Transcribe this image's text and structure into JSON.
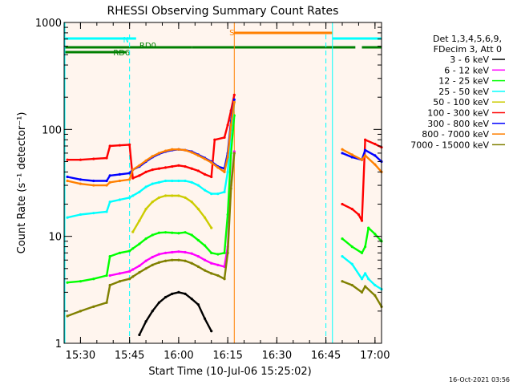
{
  "chart_data": {
    "type": "line",
    "title": "RHESSI Observing Summary Count Rates",
    "xlabel": "Start Time (10-Jul-06 15:25:02)",
    "ylabel": "Count Rate (s⁻¹ detector⁻¹)",
    "y_scale": "log",
    "ylim": [
      1,
      1000
    ],
    "xlim_minutes": [
      0,
      97
    ],
    "x_ticks": [
      {
        "label": "15:30",
        "t": 5
      },
      {
        "label": "15:45",
        "t": 20
      },
      {
        "label": "16:00",
        "t": 35
      },
      {
        "label": "16:15",
        "t": 50
      },
      {
        "label": "16:30",
        "t": 65
      },
      {
        "label": "16:45",
        "t": 80
      },
      {
        "label": "17:00",
        "t": 95
      }
    ],
    "y_ticks": [
      {
        "label": "1",
        "v": 1
      },
      {
        "label": "10",
        "v": 10
      },
      {
        "label": "100",
        "v": 100
      },
      {
        "label": "1000",
        "v": 1000
      }
    ],
    "legend_header": [
      "Det 1,3,4,5,6,9,",
      "FDecim 3, Att 0"
    ],
    "legend_position": "right",
    "footer": "16-Oct-2021 03:56",
    "flag_labels": [
      {
        "label": "N",
        "color": "#00ffff"
      },
      {
        "label": "S",
        "color": "#ff8000"
      },
      {
        "label": "RD0",
        "color": "#007f00"
      },
      {
        "label": "RD6",
        "color": "#007f00"
      }
    ],
    "flags": {
      "N": [
        [
          0,
          22
        ],
        [
          82,
          97
        ]
      ],
      "S": [
        [
          52,
          82
        ]
      ],
      "RD0": [
        [
          0,
          39
        ],
        [
          39,
          82
        ],
        [
          82,
          89
        ],
        [
          91,
          97
        ]
      ],
      "RD6": [
        [
          0,
          19
        ]
      ]
    },
    "night_markers": [
      [
        0,
        20
      ],
      [
        80,
        97
      ]
    ],
    "series": [
      {
        "name": "3 - 6 keV",
        "color": "#000000",
        "points": [
          [
            23,
            1.2
          ],
          [
            25,
            1.6
          ],
          [
            27,
            2.0
          ],
          [
            29,
            2.4
          ],
          [
            31,
            2.7
          ],
          [
            33,
            2.9
          ],
          [
            35,
            3.0
          ],
          [
            37,
            2.9
          ],
          [
            39,
            2.6
          ],
          [
            41,
            2.3
          ],
          [
            43,
            1.7
          ],
          [
            45,
            1.3
          ]
        ]
      },
      {
        "name": "6 - 12 keV",
        "color": "#ff00ff",
        "points": [
          [
            14,
            4.3
          ],
          [
            17,
            4.5
          ],
          [
            20,
            4.7
          ],
          [
            21,
            4.9
          ],
          [
            23,
            5.3
          ],
          [
            25,
            5.9
          ],
          [
            27,
            6.4
          ],
          [
            29,
            6.8
          ],
          [
            31,
            7.0
          ],
          [
            33,
            7.1
          ],
          [
            35,
            7.2
          ],
          [
            37,
            7.1
          ],
          [
            39,
            6.9
          ],
          [
            41,
            6.5
          ],
          [
            43,
            6.0
          ],
          [
            45,
            5.6
          ],
          [
            47,
            5.4
          ],
          [
            49,
            5.2
          ],
          [
            50,
            8.0
          ],
          [
            51,
            30
          ],
          [
            52,
            62
          ]
        ]
      },
      {
        "name": "12 - 25 keV",
        "color": "#00ff00",
        "points": [
          [
            1,
            3.7
          ],
          [
            5,
            3.8
          ],
          [
            9,
            4.0
          ],
          [
            13,
            4.3
          ],
          [
            14,
            6.5
          ],
          [
            17,
            7.0
          ],
          [
            20,
            7.3
          ],
          [
            21,
            7.7
          ],
          [
            23,
            8.5
          ],
          [
            25,
            9.5
          ],
          [
            27,
            10.3
          ],
          [
            29,
            10.8
          ],
          [
            31,
            10.9
          ],
          [
            33,
            10.8
          ],
          [
            35,
            10.7
          ],
          [
            37,
            10.9
          ],
          [
            39,
            10.3
          ],
          [
            41,
            9.2
          ],
          [
            43,
            8.2
          ],
          [
            45,
            7.0
          ],
          [
            47,
            6.8
          ],
          [
            49,
            7.0
          ],
          [
            50,
            16
          ],
          [
            51,
            60
          ],
          [
            52,
            135
          ],
          [
            85,
            9.5
          ],
          [
            88,
            8.0
          ],
          [
            91,
            7.0
          ],
          [
            92,
            8.0
          ],
          [
            93,
            12.0
          ],
          [
            95,
            10.5
          ],
          [
            97,
            9.0
          ]
        ]
      },
      {
        "name": "25 - 50 keV",
        "color": "#00ffff",
        "points": [
          [
            1,
            15
          ],
          [
            5,
            16
          ],
          [
            9,
            16.5
          ],
          [
            13,
            17
          ],
          [
            14,
            21
          ],
          [
            17,
            22
          ],
          [
            20,
            23
          ],
          [
            21,
            24
          ],
          [
            23,
            26
          ],
          [
            25,
            29
          ],
          [
            27,
            31
          ],
          [
            29,
            32
          ],
          [
            31,
            33
          ],
          [
            33,
            33
          ],
          [
            35,
            33
          ],
          [
            37,
            33
          ],
          [
            39,
            32
          ],
          [
            41,
            30
          ],
          [
            43,
            27
          ],
          [
            45,
            25
          ],
          [
            47,
            25
          ],
          [
            49,
            26
          ],
          [
            50,
            40
          ],
          [
            51,
            95
          ],
          [
            52,
            180
          ],
          [
            85,
            6.5
          ],
          [
            88,
            5.5
          ],
          [
            91,
            4.0
          ],
          [
            92,
            4.5
          ],
          [
            93,
            4.0
          ],
          [
            95,
            3.5
          ],
          [
            97,
            3.2
          ]
        ]
      },
      {
        "name": "50 - 100 keV",
        "color": "#cccc00",
        "points": [
          [
            21,
            11
          ],
          [
            23,
            14
          ],
          [
            25,
            18
          ],
          [
            27,
            21
          ],
          [
            29,
            23
          ],
          [
            31,
            24
          ],
          [
            33,
            24
          ],
          [
            35,
            24
          ],
          [
            37,
            23
          ],
          [
            39,
            21
          ],
          [
            41,
            18
          ],
          [
            43,
            15
          ],
          [
            45,
            12
          ]
        ]
      },
      {
        "name": "100 - 300 keV",
        "color": "#ff0000",
        "points": [
          [
            1,
            52
          ],
          [
            5,
            52
          ],
          [
            9,
            53
          ],
          [
            13,
            54
          ],
          [
            14,
            70
          ],
          [
            17,
            71
          ],
          [
            20,
            72
          ],
          [
            21,
            35
          ],
          [
            23,
            37
          ],
          [
            25,
            40
          ],
          [
            27,
            42
          ],
          [
            29,
            43
          ],
          [
            31,
            44
          ],
          [
            33,
            45
          ],
          [
            35,
            46
          ],
          [
            37,
            45
          ],
          [
            39,
            43
          ],
          [
            41,
            41
          ],
          [
            43,
            38
          ],
          [
            45,
            36
          ],
          [
            46,
            80
          ],
          [
            49,
            84
          ],
          [
            50,
            110
          ],
          [
            51,
            150
          ],
          [
            52,
            210
          ],
          [
            85,
            20
          ],
          [
            88,
            18
          ],
          [
            90,
            16
          ],
          [
            91,
            14
          ],
          [
            92,
            80
          ],
          [
            95,
            73
          ],
          [
            97,
            68
          ]
        ]
      },
      {
        "name": "300 - 800 keV",
        "color": "#0000ff",
        "points": [
          [
            1,
            36
          ],
          [
            5,
            34
          ],
          [
            9,
            33
          ],
          [
            13,
            33
          ],
          [
            14,
            37
          ],
          [
            17,
            38
          ],
          [
            20,
            39
          ],
          [
            21,
            42
          ],
          [
            23,
            45
          ],
          [
            25,
            50
          ],
          [
            27,
            55
          ],
          [
            29,
            59
          ],
          [
            31,
            62
          ],
          [
            33,
            64
          ],
          [
            35,
            65
          ],
          [
            37,
            64
          ],
          [
            39,
            62
          ],
          [
            41,
            58
          ],
          [
            43,
            54
          ],
          [
            45,
            50
          ],
          [
            47,
            45
          ],
          [
            49,
            43
          ],
          [
            50,
            60
          ],
          [
            51,
            120
          ],
          [
            52,
            190
          ],
          [
            85,
            60
          ],
          [
            88,
            55
          ],
          [
            91,
            52
          ],
          [
            92,
            64
          ],
          [
            95,
            57
          ],
          [
            97,
            50
          ]
        ]
      },
      {
        "name": "800 - 7000 keV",
        "color": "#ff8000",
        "points": [
          [
            1,
            33
          ],
          [
            5,
            31
          ],
          [
            9,
            30
          ],
          [
            13,
            30
          ],
          [
            14,
            32
          ],
          [
            17,
            33
          ],
          [
            20,
            34
          ],
          [
            21,
            42
          ],
          [
            23,
            46
          ],
          [
            25,
            51
          ],
          [
            27,
            56
          ],
          [
            29,
            60
          ],
          [
            31,
            63
          ],
          [
            33,
            65
          ],
          [
            35,
            65
          ],
          [
            37,
            64
          ],
          [
            39,
            61
          ],
          [
            41,
            57
          ],
          [
            43,
            53
          ],
          [
            45,
            49
          ],
          [
            47,
            44
          ],
          [
            49,
            40
          ],
          [
            50,
            55
          ],
          [
            51,
            110
          ],
          [
            52,
            180
          ],
          [
            85,
            65
          ],
          [
            88,
            58
          ],
          [
            91,
            52
          ],
          [
            92,
            57
          ],
          [
            95,
            47
          ],
          [
            97,
            40
          ]
        ]
      },
      {
        "name": "7000 - 15000 keV",
        "color": "#808000",
        "points": [
          [
            1,
            1.8
          ],
          [
            5,
            2.0
          ],
          [
            9,
            2.2
          ],
          [
            13,
            2.4
          ],
          [
            14,
            3.5
          ],
          [
            17,
            3.8
          ],
          [
            20,
            4.0
          ],
          [
            21,
            4.2
          ],
          [
            23,
            4.6
          ],
          [
            25,
            5.0
          ],
          [
            27,
            5.4
          ],
          [
            29,
            5.7
          ],
          [
            31,
            5.9
          ],
          [
            33,
            6.0
          ],
          [
            35,
            6.0
          ],
          [
            37,
            5.9
          ],
          [
            39,
            5.6
          ],
          [
            41,
            5.2
          ],
          [
            43,
            4.8
          ],
          [
            45,
            4.5
          ],
          [
            47,
            4.3
          ],
          [
            49,
            4.0
          ],
          [
            50,
            7.0
          ],
          [
            51,
            28
          ],
          [
            52,
            60
          ],
          [
            85,
            3.8
          ],
          [
            88,
            3.5
          ],
          [
            91,
            3.0
          ],
          [
            92,
            3.4
          ],
          [
            95,
            2.8
          ],
          [
            97,
            2.2
          ]
        ]
      }
    ]
  }
}
